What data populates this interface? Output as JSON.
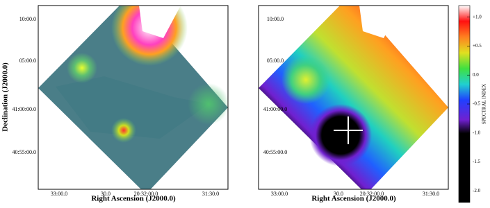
{
  "chart_data": {
    "type": "image-map",
    "panels": [
      {
        "xlabel": "Right Ascension (J2000.0)",
        "ylabel": "Declination (J2000.0)",
        "xticklabels": [
          "33:00.0",
          "30.0",
          "20:32:00.0",
          "31:30.0"
        ],
        "yticklabels": [
          "10:00.0",
          "05:00.0",
          "41:00:00.0",
          "40:55:00.0"
        ]
      },
      {
        "xlabel": "Right Ascension (J2000.0)",
        "xticklabels": [
          "33:00.0",
          "30.0",
          "20:32:00.0",
          "31:30.0"
        ],
        "yticklabels": [
          "10:00.0",
          "05:00.0",
          "41:00:00.0",
          "40:55:00.0"
        ]
      }
    ],
    "colorbar": {
      "label": "SPECTRAL INDEX",
      "clim": [
        -2.2,
        1.2
      ],
      "ticks": [
        {
          "value": 1.0,
          "label": "+1.0"
        },
        {
          "value": 0.5,
          "label": "+0.5"
        },
        {
          "value": 0.0,
          "label": "0.0"
        },
        {
          "value": -0.5,
          "label": "-0.5"
        },
        {
          "value": -1.0,
          "label": "-1.0"
        },
        {
          "value": -1.5,
          "label": "-1.5"
        },
        {
          "value": -2.0,
          "label": "-2.0"
        }
      ]
    }
  }
}
